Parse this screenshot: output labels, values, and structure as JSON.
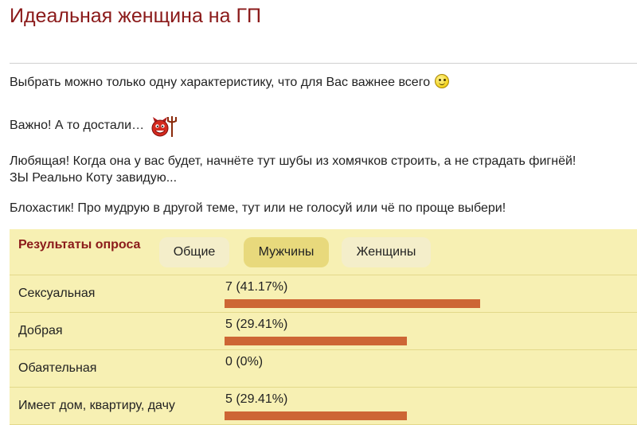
{
  "page": {
    "title": "Идеальная женщина на ГП",
    "paragraphs": [
      "Выбрать можно только одну характеристику, что для Вас важнее всего",
      "Важно! А то достали…",
      "Любящая! Когда она у вас будет, начнёте тут шубы из хомячков строить, а не страдать фигнёй!",
      "ЗЫ Реально Коту завидую...",
      "Блохастик! Про мудрую в другой теме, тут или не голосуй или чё по проще выбери!"
    ],
    "emoticons": [
      "smile-icon",
      "devil-icon"
    ]
  },
  "poll": {
    "title": "Результаты опроса",
    "tabs": [
      {
        "label": "Общие",
        "active": false
      },
      {
        "label": "Мужчины",
        "active": true
      },
      {
        "label": "Женщины",
        "active": false
      }
    ],
    "bar_color": "#cd6635",
    "accent_color": "#8b1a1a",
    "background_color": "#f7f0b3"
  },
  "chart_data": {
    "type": "bar",
    "orientation": "horizontal",
    "categories": [
      "Сексуальная",
      "Добрая",
      "Обаятельная",
      "Имеет дом, квартиру, дачу"
    ],
    "values": [
      7,
      5,
      0,
      5
    ],
    "percents": [
      41.17,
      29.41,
      0,
      29.41
    ],
    "value_labels": [
      "7 (41.17%)",
      "5 (29.41%)",
      "0 (0%)",
      "5 (29.41%)"
    ]
  }
}
